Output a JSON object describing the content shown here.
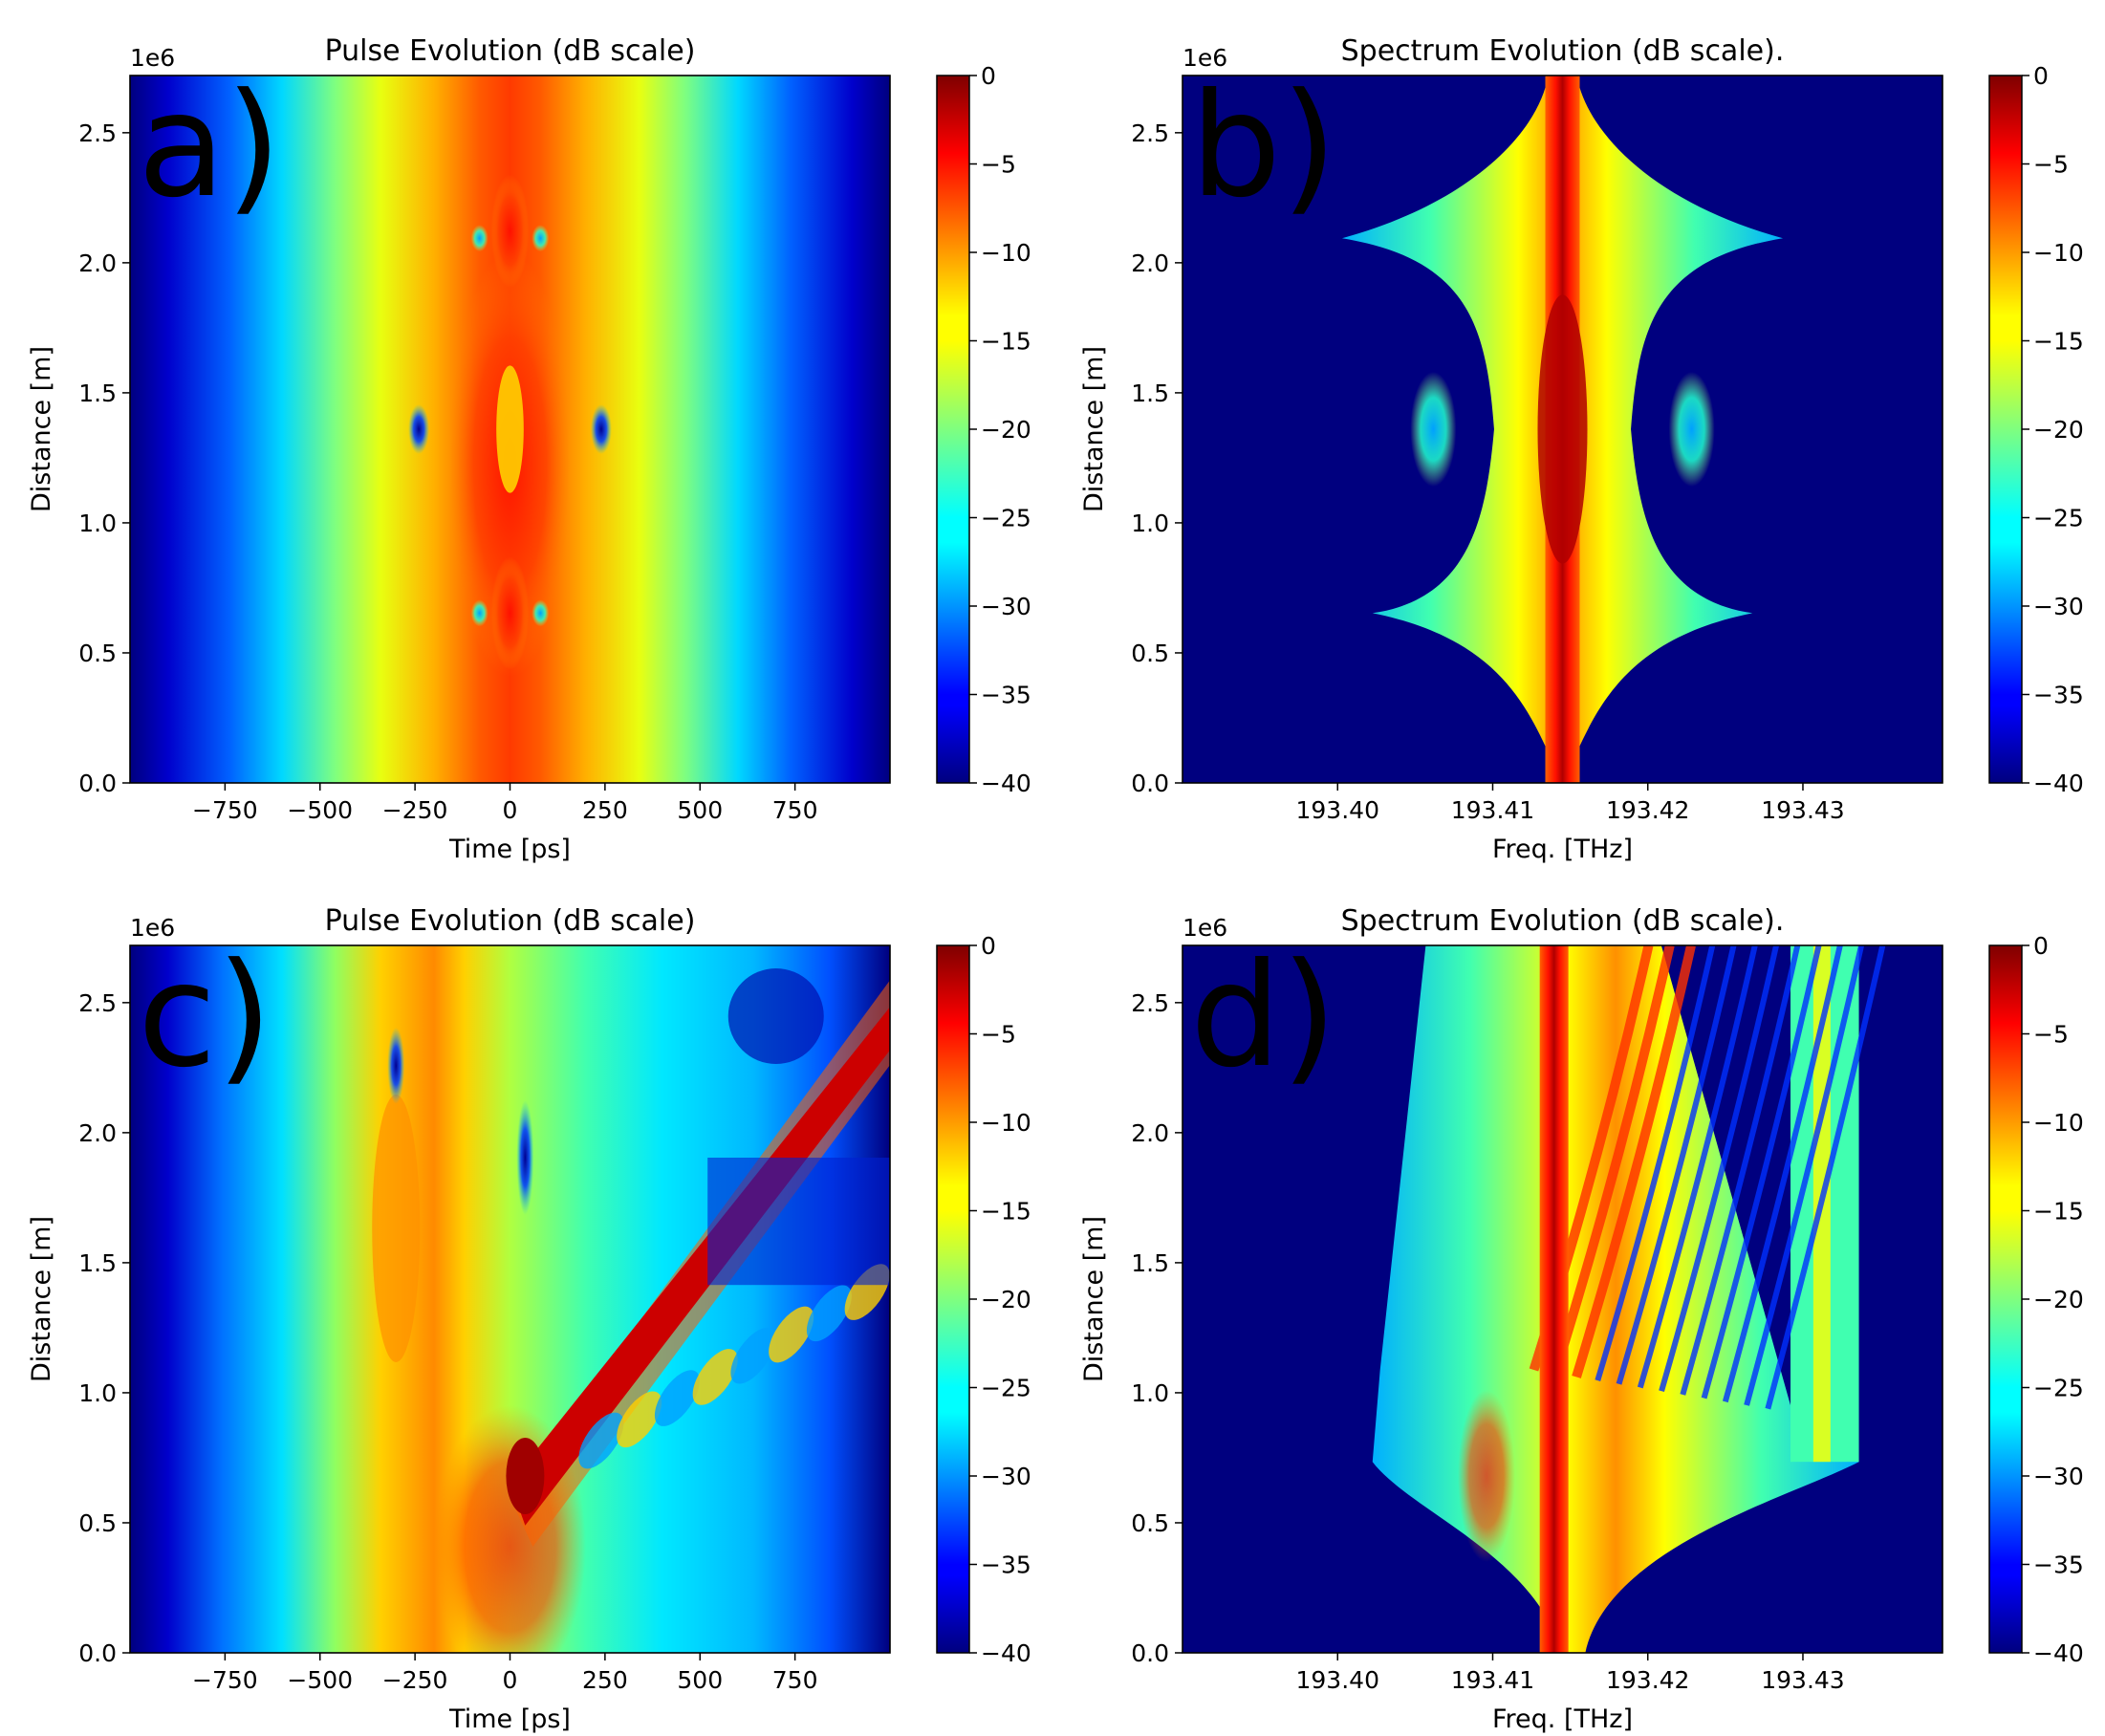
{
  "chart_data": [
    {
      "id": "a",
      "type": "heatmap",
      "title": "Pulse Evolution (dB scale)",
      "xlabel": "Time [ps]",
      "ylabel": "Distance [m]",
      "y_offset_label": "1e6",
      "panel_label": "a)",
      "xlim": [
        -1000,
        1000
      ],
      "ylim": [
        0,
        2.72
      ],
      "xticks": [
        -750,
        -500,
        -250,
        0,
        250,
        500,
        750
      ],
      "xtick_labels": [
        "−750",
        "−500",
        "−250",
        "0",
        "250",
        "500",
        "750"
      ],
      "yticks": [
        0.0,
        0.5,
        1.0,
        1.5,
        2.0,
        2.5
      ],
      "ytick_labels": [
        "0.0",
        "0.5",
        "1.0",
        "1.5",
        "2.0",
        "2.5"
      ],
      "colorbar": {
        "range": [
          -40,
          0
        ],
        "ticks": [
          0,
          -5,
          -10,
          -15,
          -20,
          -25,
          -30,
          -35,
          -40
        ],
        "tick_labels": [
          "0",
          "−5",
          "−10",
          "−15",
          "−20",
          "−25",
          "−30",
          "−35",
          "−40"
        ]
      },
      "colormap": "jet"
    },
    {
      "id": "b",
      "type": "heatmap",
      "title": "Spectrum Evolution (dB scale).",
      "xlabel": "Freq. [THz]",
      "ylabel": "Distance [m]",
      "y_offset_label": "1e6",
      "panel_label": "b)",
      "xlim": [
        193.39,
        193.439
      ],
      "ylim": [
        0,
        2.72
      ],
      "xticks": [
        193.4,
        193.41,
        193.42,
        193.43
      ],
      "xtick_labels": [
        "193.40",
        "193.41",
        "193.42",
        "193.43"
      ],
      "yticks": [
        0.0,
        0.5,
        1.0,
        1.5,
        2.0,
        2.5
      ],
      "ytick_labels": [
        "0.0",
        "0.5",
        "1.0",
        "1.5",
        "2.0",
        "2.5"
      ],
      "colorbar": {
        "range": [
          -40,
          0
        ],
        "ticks": [
          0,
          -5,
          -10,
          -15,
          -20,
          -25,
          -30,
          -35,
          -40
        ],
        "tick_labels": [
          "0",
          "−5",
          "−10",
          "−15",
          "−20",
          "−25",
          "−30",
          "−35",
          "−40"
        ]
      },
      "colormap": "jet"
    },
    {
      "id": "c",
      "type": "heatmap",
      "title": "Pulse Evolution (dB scale)",
      "xlabel": "Time [ps]",
      "ylabel": "Distance [m]",
      "y_offset_label": "1e6",
      "panel_label": "c)",
      "xlim": [
        -1000,
        1000
      ],
      "ylim": [
        0,
        2.72
      ],
      "xticks": [
        -750,
        -500,
        -250,
        0,
        250,
        500,
        750
      ],
      "xtick_labels": [
        "−750",
        "−500",
        "−250",
        "0",
        "250",
        "500",
        "750"
      ],
      "yticks": [
        0.0,
        0.5,
        1.0,
        1.5,
        2.0,
        2.5
      ],
      "ytick_labels": [
        "0.0",
        "0.5",
        "1.0",
        "1.5",
        "2.0",
        "2.5"
      ],
      "colorbar": {
        "range": [
          -40,
          0
        ],
        "ticks": [
          0,
          -5,
          -10,
          -15,
          -20,
          -25,
          -30,
          -35,
          -40
        ],
        "tick_labels": [
          "0",
          "−5",
          "−10",
          "−15",
          "−20",
          "−25",
          "−30",
          "−35",
          "−40"
        ]
      },
      "colormap": "jet"
    },
    {
      "id": "d",
      "type": "heatmap",
      "title": "Spectrum Evolution (dB scale).",
      "xlabel": "Freq. [THz]",
      "ylabel": "Distance [m]",
      "y_offset_label": "1e6",
      "panel_label": "d)",
      "xlim": [
        193.39,
        193.439
      ],
      "ylim": [
        0,
        2.72
      ],
      "xticks": [
        193.4,
        193.41,
        193.42,
        193.43
      ],
      "xtick_labels": [
        "193.40",
        "193.41",
        "193.42",
        "193.43"
      ],
      "yticks": [
        0.0,
        0.5,
        1.0,
        1.5,
        2.0,
        2.5
      ],
      "ytick_labels": [
        "0.0",
        "0.5",
        "1.0",
        "1.5",
        "2.0",
        "2.5"
      ],
      "colorbar": {
        "range": [
          -40,
          0
        ],
        "ticks": [
          0,
          -5,
          -10,
          -15,
          -20,
          -25,
          -30,
          -35,
          -40
        ],
        "tick_labels": [
          "0",
          "−5",
          "−10",
          "−15",
          "−20",
          "−25",
          "−30",
          "−35",
          "−40"
        ]
      },
      "colormap": "jet"
    }
  ]
}
